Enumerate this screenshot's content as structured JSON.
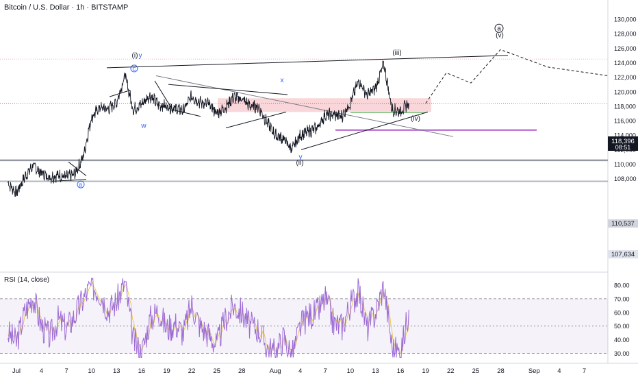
{
  "header": {
    "title": "Bitcoin / U.S. Dollar · 1h · BITSTAMP"
  },
  "rsi": {
    "title": "RSI (14, close)",
    "levels": [
      30,
      70
    ]
  },
  "price_tags": {
    "current": {
      "price": "118,396",
      "timer": "08:51",
      "value": 118396
    },
    "level_1": {
      "text": "110,537",
      "value": 110537
    },
    "level_2": {
      "text": "107,634",
      "value": 107634
    }
  },
  "colors": {
    "price_line": "#131722",
    "rsi_line": "#9c6ad6",
    "rsi_ma": "#e8c547",
    "zone_red": "#f7c8cc",
    "purple_level": "#c27ad8",
    "green_level": "#4caf50",
    "wave_blue": "#2962ff",
    "grid_dash": "#787b86"
  },
  "chart_data": [
    {
      "type": "line",
      "title": "Bitcoin / U.S. Dollar · 1h · BITSTAMP",
      "ylim": [
        105000,
        131000
      ],
      "y_ticks": [
        108000,
        110000,
        112000,
        114000,
        116000,
        118000,
        120000,
        122000,
        124000,
        126000,
        128000,
        130000
      ],
      "y_tick_labels": [
        "108,000",
        "110,000",
        "112,000",
        "114,000",
        "116,000",
        "118,000",
        "120,000",
        "122,000",
        "124,000",
        "126,000",
        "128,000",
        "130,000"
      ],
      "x_tick_labels": [
        "Jul",
        "4",
        "7",
        "10",
        "13",
        "16",
        "19",
        "22",
        "25",
        "28",
        "Aug",
        "4",
        "7",
        "10",
        "13",
        "16",
        "19",
        "22",
        "25",
        "28",
        "Sep",
        "4",
        "7"
      ],
      "x_range_days": [
        "2025-06-30",
        "2025-09-08"
      ],
      "series": [
        {
          "x": [
            "2025-06-30",
            "2025-07-01",
            "2025-07-02",
            "2025-07-03",
            "2025-07-04",
            "2025-07-05",
            "2025-07-06",
            "2025-07-07",
            "2025-07-08",
            "2025-07-09",
            "2025-07-10",
            "2025-07-11",
            "2025-07-12",
            "2025-07-13",
            "2025-07-14",
            "2025-07-15",
            "2025-07-16",
            "2025-07-17",
            "2025-07-18",
            "2025-07-19",
            "2025-07-20",
            "2025-07-21",
            "2025-07-22",
            "2025-07-23",
            "2025-07-24",
            "2025-07-25",
            "2025-07-26",
            "2025-07-27",
            "2025-07-28",
            "2025-07-29",
            "2025-07-30",
            "2025-07-31",
            "2025-08-01",
            "2025-08-02",
            "2025-08-03",
            "2025-08-04",
            "2025-08-05",
            "2025-08-06",
            "2025-08-07",
            "2025-08-08",
            "2025-08-09",
            "2025-08-10",
            "2025-08-11",
            "2025-08-12",
            "2025-08-13",
            "2025-08-14",
            "2025-08-15",
            "2025-08-16",
            "2025-08-17"
          ],
          "values": [
            107400,
            106000,
            108200,
            109800,
            108800,
            108200,
            108500,
            108200,
            108600,
            111000,
            116500,
            117800,
            117600,
            118500,
            122300,
            117500,
            118300,
            119500,
            118200,
            118000,
            117700,
            117400,
            119400,
            118500,
            118300,
            117000,
            117800,
            119200,
            119000,
            118000,
            117900,
            115800,
            114000,
            113500,
            112000,
            114000,
            114500,
            115000,
            116800,
            116800,
            116600,
            118500,
            121500,
            119500,
            120500,
            123800,
            117500,
            117300,
            118396
          ]
        }
      ],
      "annotations": [
        "(i)",
        "y",
        "w",
        "x",
        "y",
        "(ii)",
        "(iii)",
        "(iv)",
        "(v)",
        "a",
        "B",
        "C"
      ]
    },
    {
      "type": "line",
      "title": "RSI (14, close)",
      "ylim": [
        25,
        88
      ],
      "y_ticks": [
        30,
        40,
        50,
        60,
        70,
        80
      ],
      "y_tick_labels": [
        "30.00",
        "40.00",
        "50.00",
        "60.00",
        "70.00",
        "80.00"
      ],
      "series": [
        {
          "name": "RSI",
          "values": [
            45,
            38,
            60,
            72,
            50,
            42,
            55,
            48,
            58,
            70,
            80,
            75,
            62,
            68,
            82,
            40,
            30,
            55,
            62,
            48,
            52,
            45,
            66,
            50,
            44,
            36,
            55,
            65,
            60,
            50,
            48,
            35,
            30,
            42,
            28,
            50,
            58,
            60,
            70,
            52,
            50,
            66,
            76,
            48,
            60,
            80,
            34,
            30,
            62
          ]
        }
      ]
    }
  ]
}
